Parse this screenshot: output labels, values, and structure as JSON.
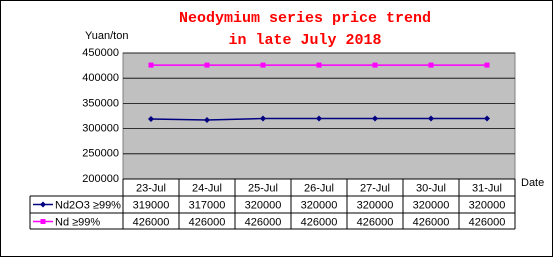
{
  "chart_data": {
    "type": "line",
    "title": "Neodymium series price trend",
    "subtitle": "in late July 2018",
    "y_label": "Yuan/ton",
    "x_label": "Date",
    "categories": [
      "23-Jul",
      "24-Jul",
      "25-Jul",
      "26-Jul",
      "27-Jul",
      "30-Jul",
      "31-Jul"
    ],
    "series": [
      {
        "name": "Nd2O3 ≥99%",
        "color": "#000080",
        "marker": "diamond",
        "values": [
          319000,
          317000,
          320000,
          320000,
          320000,
          320000,
          320000
        ]
      },
      {
        "name": "Nd ≥99%",
        "color": "#ff00ff",
        "marker": "square",
        "values": [
          426000,
          426000,
          426000,
          426000,
          426000,
          426000,
          426000
        ]
      }
    ],
    "ylim": [
      200000,
      450000
    ],
    "yticks": [
      200000,
      250000,
      300000,
      350000,
      400000,
      450000
    ],
    "grid": true
  }
}
